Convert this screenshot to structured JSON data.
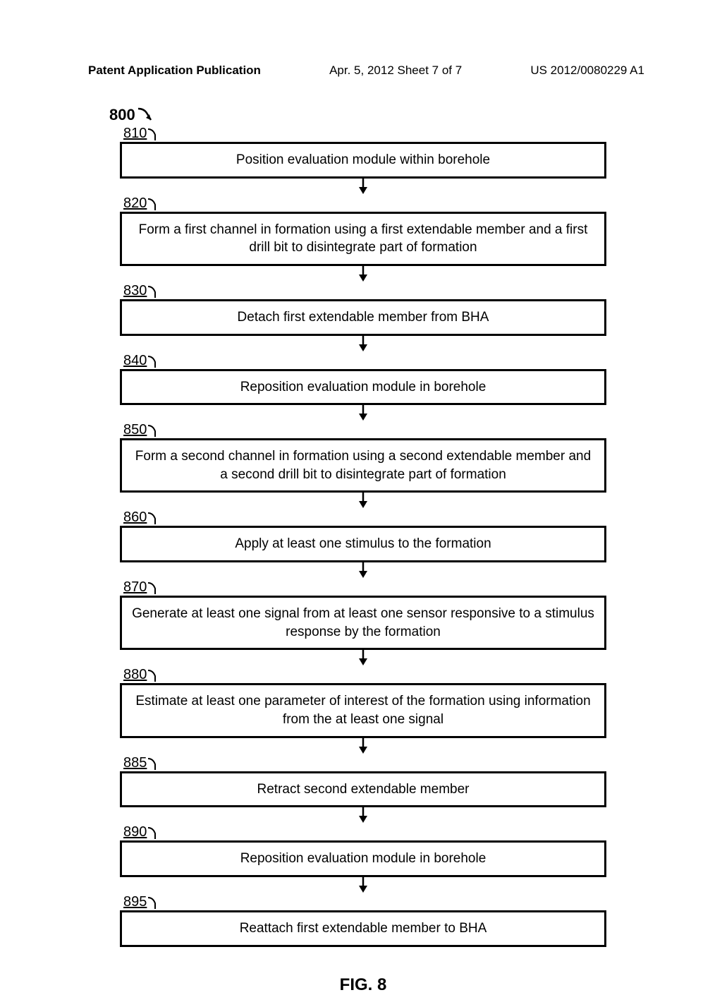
{
  "header": {
    "left": "Patent Application Publication",
    "center": "Apr. 5, 2012   Sheet 7 of 7",
    "right": "US 2012/0080229 A1"
  },
  "diagram": {
    "main_label": "800",
    "figure_label": "FIG. 8",
    "steps": [
      {
        "number": "810",
        "text": "Position evaluation module within borehole"
      },
      {
        "number": "820",
        "text": "Form a first channel in formation using a first extendable member and a first drill bit to disintegrate part of formation"
      },
      {
        "number": "830",
        "text": "Detach first extendable member from BHA"
      },
      {
        "number": "840",
        "text": "Reposition evaluation module in borehole"
      },
      {
        "number": "850",
        "text": "Form a second channel in formation using a second extendable member and a second drill bit to disintegrate part of formation"
      },
      {
        "number": "860",
        "text": "Apply at least one stimulus to the formation"
      },
      {
        "number": "870",
        "text": "Generate at least one signal from at least one sensor responsive to a stimulus response by the formation"
      },
      {
        "number": "880",
        "text": "Estimate at least one parameter of interest of the formation using information from the at least one signal"
      },
      {
        "number": "885",
        "text": "Retract second extendable member"
      },
      {
        "number": "890",
        "text": "Reposition evaluation module in borehole"
      },
      {
        "number": "895",
        "text": "Reattach first extendable member to BHA"
      }
    ],
    "styling": {
      "box_border_color": "#000000",
      "box_border_width": 3,
      "box_background": "#ffffff",
      "text_color": "#000000",
      "font_family": "Arial, sans-serif",
      "step_font_size": 19,
      "number_font_size": 20,
      "main_label_font_size": 22,
      "figure_label_font_size": 24,
      "connector_arrow_length": 24,
      "connector_arrow_color": "#000000"
    }
  }
}
